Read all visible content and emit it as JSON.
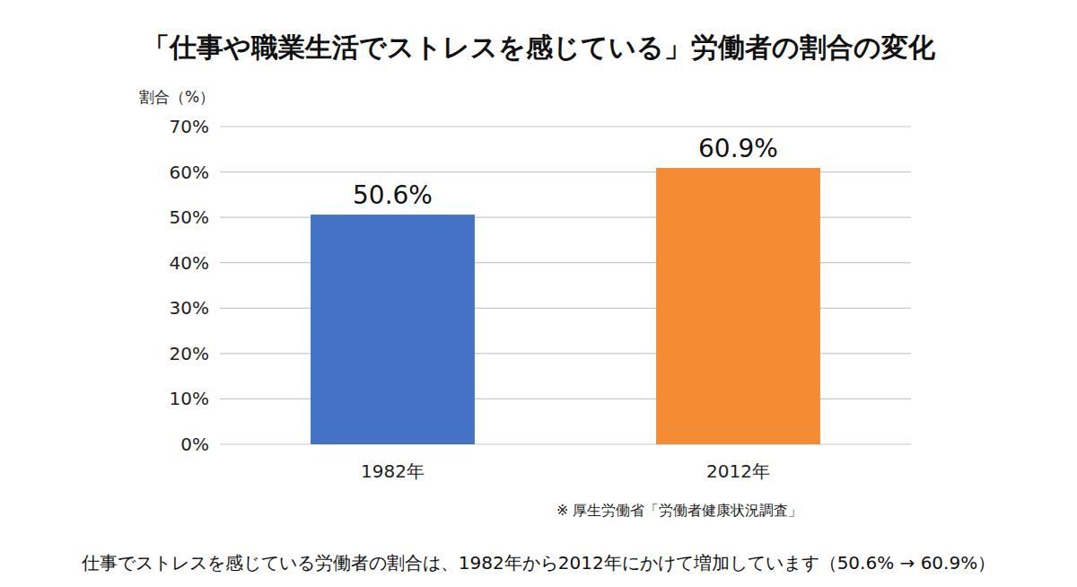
{
  "chart_data": {
    "type": "bar",
    "title": "「仕事や職業生活でストレスを感じている」労働者の割合の変化",
    "y_label": "割合（%）",
    "categories": [
      "1982年",
      "2012年"
    ],
    "values": [
      50.6,
      60.9
    ],
    "value_labels": [
      "50.6%",
      "60.9%"
    ],
    "colors": [
      "#4472c4",
      "#f58b35"
    ],
    "ylim": [
      0,
      70
    ],
    "yticks": [
      {
        "value": 0,
        "label": "0%"
      },
      {
        "value": 10,
        "label": "10%"
      },
      {
        "value": 20,
        "label": "20%"
      },
      {
        "value": 30,
        "label": "30%"
      },
      {
        "value": 40,
        "label": "40%"
      },
      {
        "value": 50,
        "label": "50%"
      },
      {
        "value": 60,
        "label": "60%"
      },
      {
        "value": 70,
        "label": "70%"
      }
    ],
    "grid": true,
    "data_labels": true,
    "source": "※ 厚生労働省「労働者健康状況調査」",
    "caption": "仕事でストレスを感じている労働者の割合は、1982年から2012年にかけて増加しています（50.6% → 60.9%）"
  }
}
